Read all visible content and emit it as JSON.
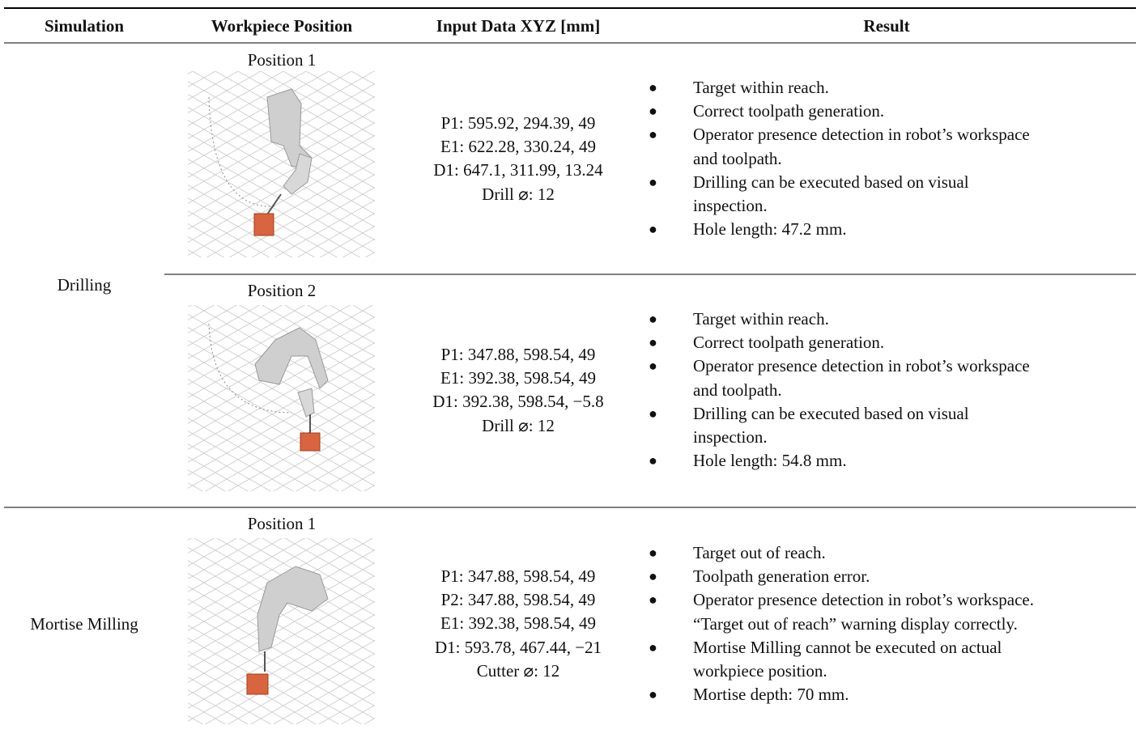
{
  "table": {
    "header": [
      "Simulation",
      "Workpiece Position",
      "Input Data XYZ [mm]",
      "Result"
    ],
    "rows": [
      {
        "simulation": "Drilling",
        "positions": [
          {
            "label": "Position 1",
            "input": [
              "P1: 595.92, 294.39, 49",
              "E1: 622.28, 330.24, 49",
              "D1: 647.1, 311.99, 13.24",
              "Drill ⌀: 12"
            ],
            "result": [
              [
                "Target within reach."
              ],
              [
                "Correct toolpath generation."
              ],
              [
                "Operator presence detection in robot’s workspace",
                "and toolpath."
              ],
              [
                "Drilling can be executed based on visual",
                "inspection."
              ],
              [
                "Hole length: 47.2 mm."
              ]
            ]
          },
          {
            "label": "Position 2",
            "input": [
              "P1: 347.88, 598.54, 49",
              "E1: 392.38, 598.54, 49",
              "D1: 392.38, 598.54, −5.8",
              "Drill ⌀: 12"
            ],
            "result": [
              [
                "Target within reach."
              ],
              [
                "Correct toolpath generation."
              ],
              [
                "Operator presence detection in robot’s workspace",
                "and toolpath."
              ],
              [
                "Drilling can be executed based on visual",
                "inspection."
              ],
              [
                "Hole length: 54.8 mm."
              ]
            ]
          }
        ]
      },
      {
        "simulation": "Mortise Milling",
        "positions": [
          {
            "label": "Position 1",
            "input": [
              "P1: 347.88, 598.54, 49",
              "P2: 347.88, 598.54, 49",
              "E1: 392.38, 598.54, 49",
              "D1: 593.78, 467.44, −21",
              "Cutter ⌀: 12"
            ],
            "result": [
              [
                "Target out of reach."
              ],
              [
                "Toolpath generation error."
              ],
              [
                "Operator presence detection in robot’s workspace.",
                "“Target out of reach” warning display correctly."
              ],
              [
                "Mortise Milling cannot be executed on actual",
                "workpiece position."
              ],
              [
                "Mortise depth: 70 mm."
              ]
            ]
          }
        ]
      }
    ]
  }
}
